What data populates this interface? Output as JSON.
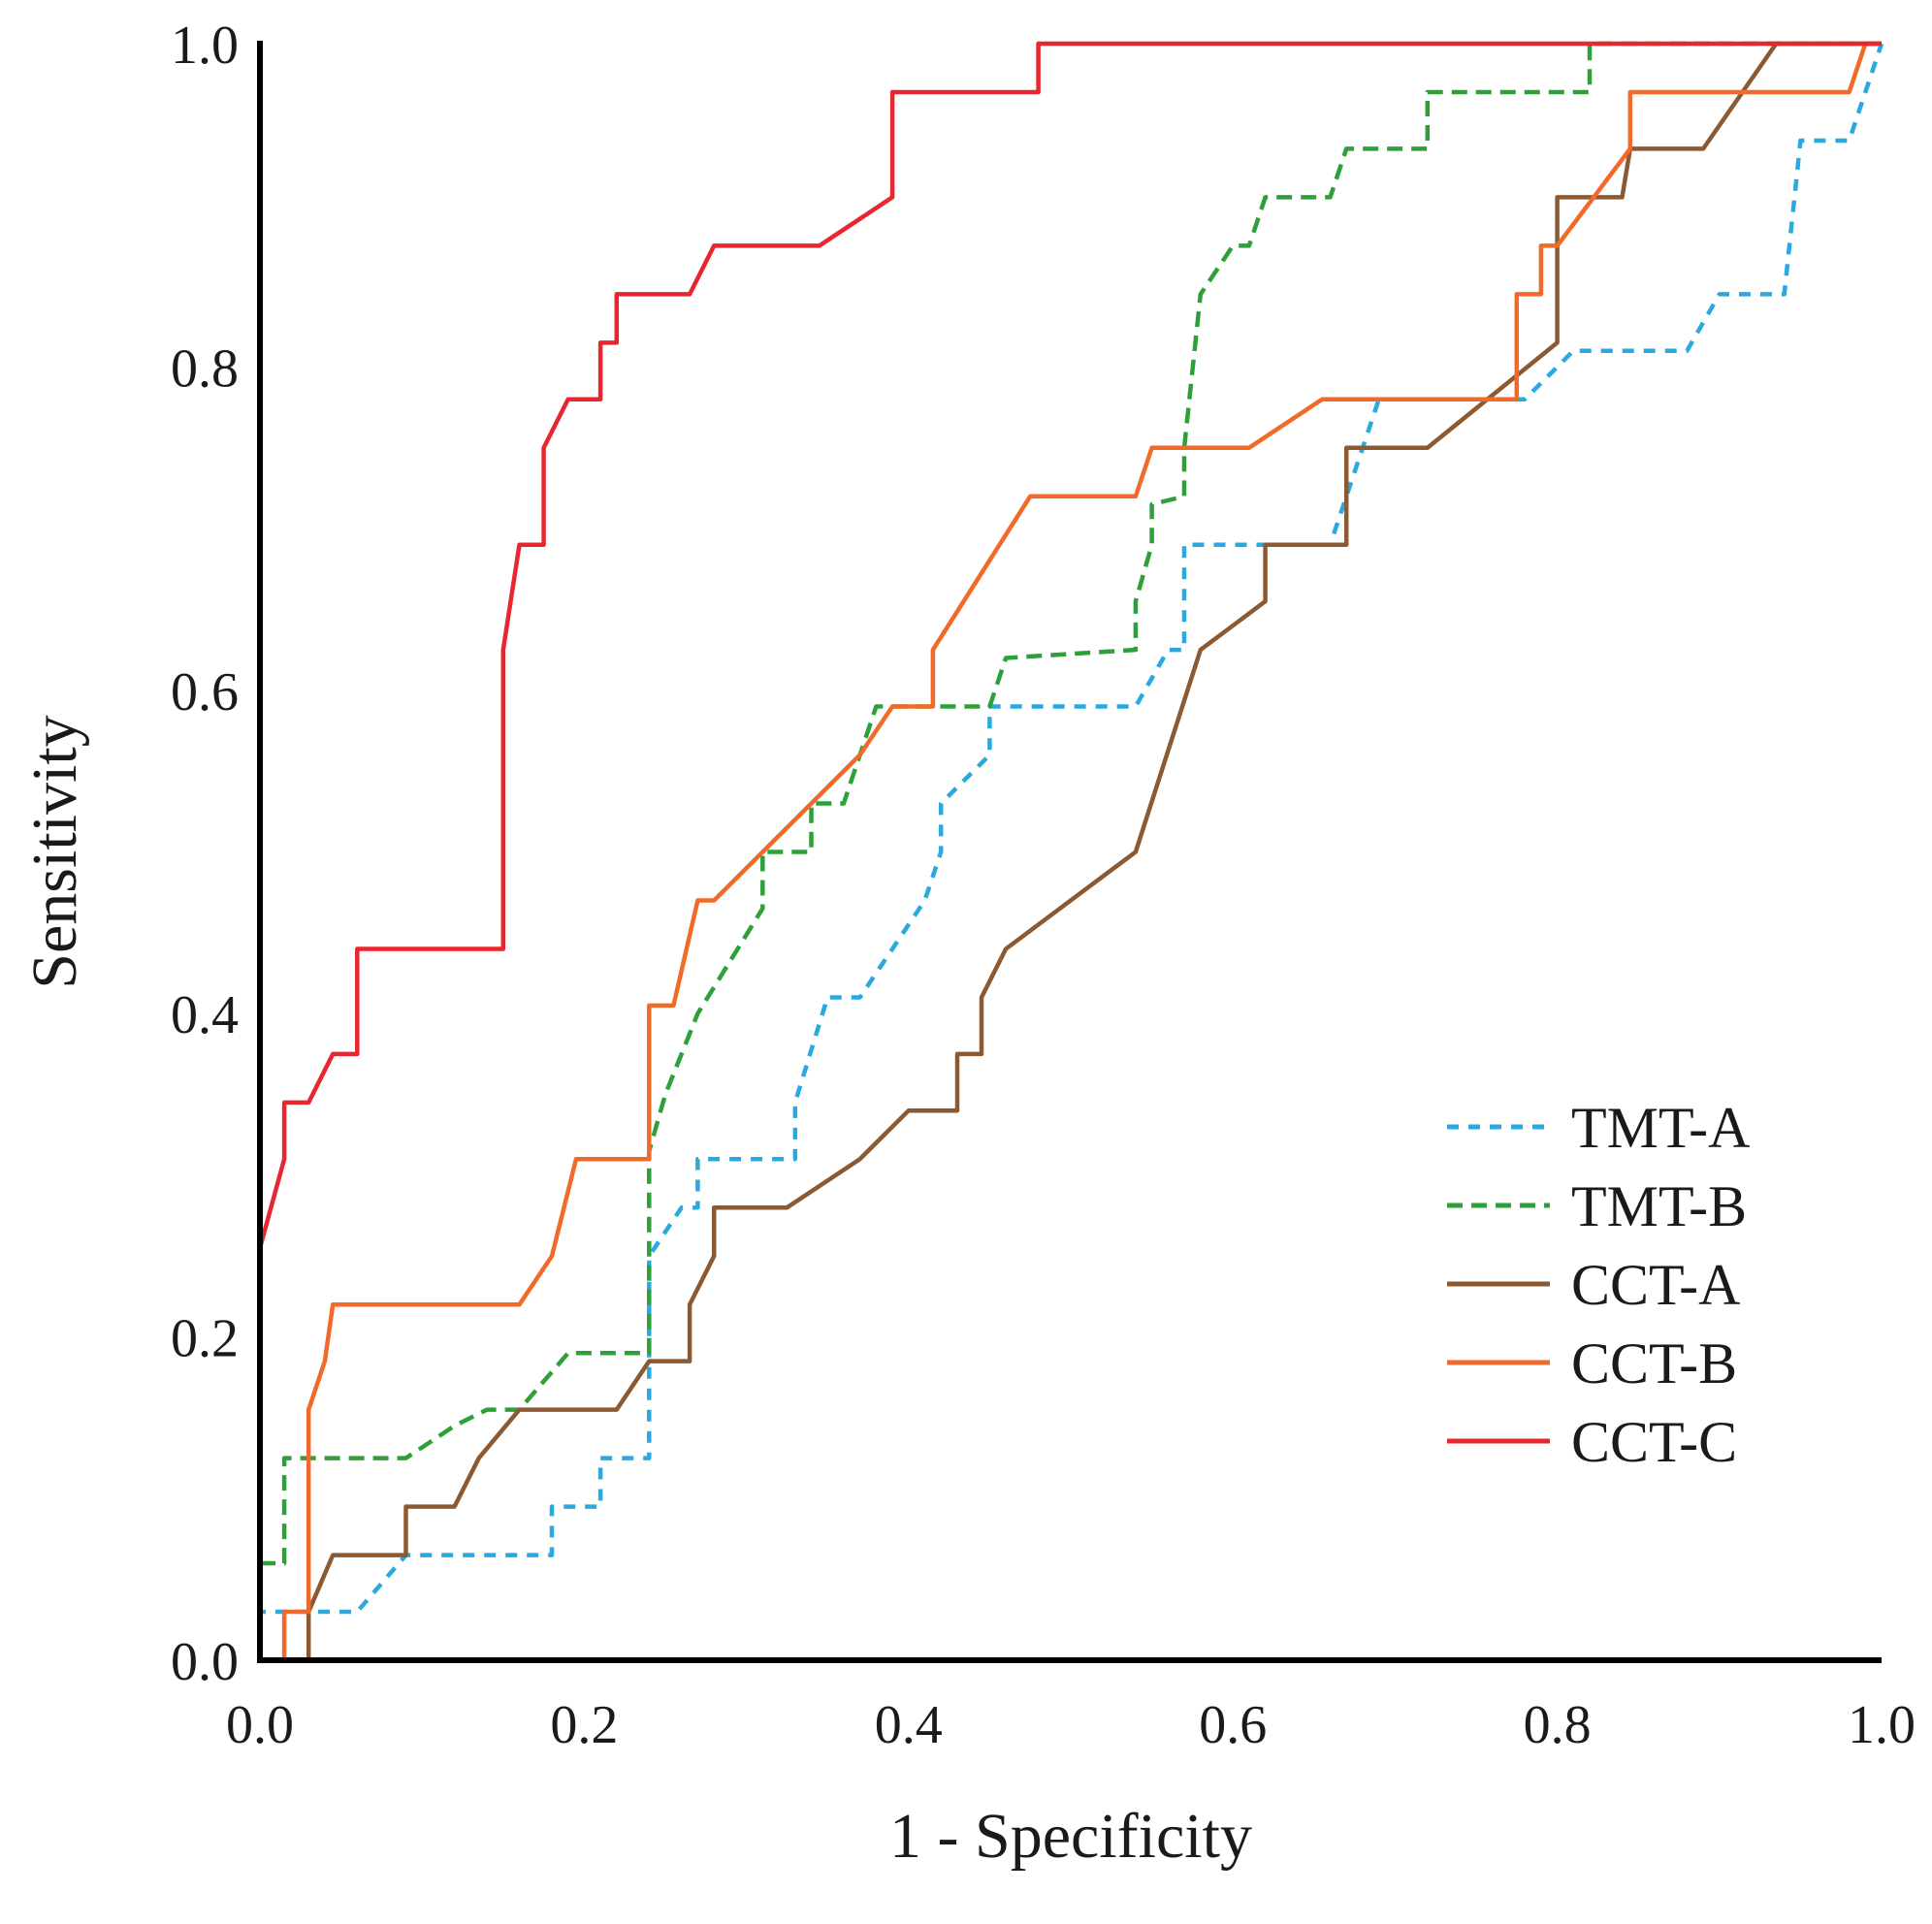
{
  "chart_data": {
    "type": "line",
    "title": "",
    "xlabel": "1 - Specificity",
    "ylabel": "Sensitivity",
    "xlim": [
      0,
      1
    ],
    "ylim": [
      0,
      1
    ],
    "xticks": [
      "0.0",
      "0.2",
      "0.4",
      "0.6",
      "0.8",
      "1.0"
    ],
    "yticks": [
      "0.0",
      "0.2",
      "0.4",
      "0.6",
      "0.8",
      "1.0"
    ],
    "grid": false,
    "legend_position": "lower-right",
    "series": [
      {
        "name": "TMT-A",
        "color": "#29a9e0",
        "dash": "dotted",
        "points": [
          [
            0,
            0
          ],
          [
            0,
            0.03
          ],
          [
            0.06,
            0.03
          ],
          [
            0.09,
            0.065
          ],
          [
            0.18,
            0.065
          ],
          [
            0.18,
            0.095
          ],
          [
            0.21,
            0.095
          ],
          [
            0.21,
            0.125
          ],
          [
            0.24,
            0.125
          ],
          [
            0.24,
            0.25
          ],
          [
            0.26,
            0.28
          ],
          [
            0.27,
            0.28
          ],
          [
            0.27,
            0.31
          ],
          [
            0.33,
            0.31
          ],
          [
            0.33,
            0.345
          ],
          [
            0.35,
            0.41
          ],
          [
            0.37,
            0.41
          ],
          [
            0.39,
            0.44
          ],
          [
            0.41,
            0.47
          ],
          [
            0.42,
            0.5
          ],
          [
            0.42,
            0.53
          ],
          [
            0.45,
            0.56
          ],
          [
            0.45,
            0.59
          ],
          [
            0.54,
            0.59
          ],
          [
            0.56,
            0.625
          ],
          [
            0.57,
            0.625
          ],
          [
            0.57,
            0.69
          ],
          [
            0.66,
            0.69
          ],
          [
            0.67,
            0.72
          ],
          [
            0.68,
            0.75
          ],
          [
            0.69,
            0.78
          ],
          [
            0.78,
            0.78
          ],
          [
            0.81,
            0.81
          ],
          [
            0.88,
            0.81
          ],
          [
            0.9,
            0.845
          ],
          [
            0.94,
            0.845
          ],
          [
            0.95,
            0.94
          ],
          [
            0.98,
            0.94
          ],
          [
            1,
            1
          ]
        ]
      },
      {
        "name": "TMT-B",
        "color": "#2ea03a",
        "dash": "dashed",
        "points": [
          [
            0,
            0
          ],
          [
            0,
            0.06
          ],
          [
            0.015,
            0.06
          ],
          [
            0.015,
            0.125
          ],
          [
            0.09,
            0.125
          ],
          [
            0.12,
            0.145
          ],
          [
            0.14,
            0.155
          ],
          [
            0.16,
            0.155
          ],
          [
            0.19,
            0.19
          ],
          [
            0.24,
            0.19
          ],
          [
            0.24,
            0.315
          ],
          [
            0.25,
            0.35
          ],
          [
            0.26,
            0.375
          ],
          [
            0.27,
            0.4
          ],
          [
            0.31,
            0.465
          ],
          [
            0.31,
            0.5
          ],
          [
            0.34,
            0.5
          ],
          [
            0.34,
            0.53
          ],
          [
            0.36,
            0.53
          ],
          [
            0.37,
            0.56
          ],
          [
            0.38,
            0.59
          ],
          [
            0.45,
            0.59
          ],
          [
            0.46,
            0.62
          ],
          [
            0.54,
            0.625
          ],
          [
            0.54,
            0.655
          ],
          [
            0.55,
            0.69
          ],
          [
            0.55,
            0.715
          ],
          [
            0.57,
            0.72
          ],
          [
            0.57,
            0.75
          ],
          [
            0.58,
            0.845
          ],
          [
            0.6,
            0.875
          ],
          [
            0.61,
            0.875
          ],
          [
            0.62,
            0.905
          ],
          [
            0.66,
            0.905
          ],
          [
            0.67,
            0.935
          ],
          [
            0.72,
            0.935
          ],
          [
            0.72,
            0.97
          ],
          [
            0.82,
            0.97
          ],
          [
            0.82,
            1
          ],
          [
            1,
            1
          ]
        ]
      },
      {
        "name": "CCT-A",
        "color": "#8b5a32",
        "dash": "solid",
        "points": [
          [
            0,
            0
          ],
          [
            0.03,
            0
          ],
          [
            0.03,
            0.03
          ],
          [
            0.045,
            0.065
          ],
          [
            0.09,
            0.065
          ],
          [
            0.09,
            0.095
          ],
          [
            0.12,
            0.095
          ],
          [
            0.135,
            0.125
          ],
          [
            0.16,
            0.155
          ],
          [
            0.22,
            0.155
          ],
          [
            0.24,
            0.185
          ],
          [
            0.265,
            0.185
          ],
          [
            0.265,
            0.22
          ],
          [
            0.28,
            0.25
          ],
          [
            0.28,
            0.28
          ],
          [
            0.325,
            0.28
          ],
          [
            0.37,
            0.31
          ],
          [
            0.4,
            0.34
          ],
          [
            0.43,
            0.34
          ],
          [
            0.43,
            0.375
          ],
          [
            0.445,
            0.375
          ],
          [
            0.445,
            0.41
          ],
          [
            0.46,
            0.44
          ],
          [
            0.54,
            0.5
          ],
          [
            0.58,
            0.625
          ],
          [
            0.62,
            0.655
          ],
          [
            0.62,
            0.69
          ],
          [
            0.67,
            0.69
          ],
          [
            0.67,
            0.75
          ],
          [
            0.72,
            0.75
          ],
          [
            0.8,
            0.815
          ],
          [
            0.8,
            0.905
          ],
          [
            0.84,
            0.905
          ],
          [
            0.845,
            0.935
          ],
          [
            0.89,
            0.935
          ],
          [
            0.935,
            1
          ],
          [
            1,
            1
          ]
        ]
      },
      {
        "name": "CCT-B",
        "color": "#f26a2a",
        "dash": "solid",
        "points": [
          [
            0,
            0
          ],
          [
            0.015,
            0
          ],
          [
            0.015,
            0.03
          ],
          [
            0.03,
            0.03
          ],
          [
            0.03,
            0.155
          ],
          [
            0.04,
            0.185
          ],
          [
            0.045,
            0.22
          ],
          [
            0.16,
            0.22
          ],
          [
            0.18,
            0.25
          ],
          [
            0.195,
            0.31
          ],
          [
            0.24,
            0.31
          ],
          [
            0.24,
            0.405
          ],
          [
            0.255,
            0.405
          ],
          [
            0.27,
            0.47
          ],
          [
            0.28,
            0.47
          ],
          [
            0.37,
            0.56
          ],
          [
            0.39,
            0.59
          ],
          [
            0.415,
            0.59
          ],
          [
            0.415,
            0.625
          ],
          [
            0.475,
            0.72
          ],
          [
            0.54,
            0.72
          ],
          [
            0.55,
            0.75
          ],
          [
            0.61,
            0.75
          ],
          [
            0.655,
            0.78
          ],
          [
            0.775,
            0.78
          ],
          [
            0.775,
            0.845
          ],
          [
            0.79,
            0.845
          ],
          [
            0.79,
            0.875
          ],
          [
            0.8,
            0.875
          ],
          [
            0.845,
            0.935
          ],
          [
            0.845,
            0.97
          ],
          [
            0.98,
            0.97
          ],
          [
            0.99,
            1
          ],
          [
            1,
            1
          ]
        ]
      },
      {
        "name": "CCT-C",
        "color": "#e8262f",
        "dash": "solid",
        "points": [
          [
            0,
            0
          ],
          [
            0,
            0.255
          ],
          [
            0.015,
            0.31
          ],
          [
            0.015,
            0.345
          ],
          [
            0.03,
            0.345
          ],
          [
            0.045,
            0.375
          ],
          [
            0.06,
            0.375
          ],
          [
            0.06,
            0.44
          ],
          [
            0.15,
            0.44
          ],
          [
            0.15,
            0.625
          ],
          [
            0.16,
            0.69
          ],
          [
            0.175,
            0.69
          ],
          [
            0.175,
            0.75
          ],
          [
            0.19,
            0.78
          ],
          [
            0.21,
            0.78
          ],
          [
            0.21,
            0.815
          ],
          [
            0.22,
            0.815
          ],
          [
            0.22,
            0.845
          ],
          [
            0.265,
            0.845
          ],
          [
            0.28,
            0.875
          ],
          [
            0.345,
            0.875
          ],
          [
            0.39,
            0.905
          ],
          [
            0.39,
            0.97
          ],
          [
            0.48,
            0.97
          ],
          [
            0.48,
            1
          ],
          [
            1,
            1
          ]
        ]
      }
    ]
  }
}
